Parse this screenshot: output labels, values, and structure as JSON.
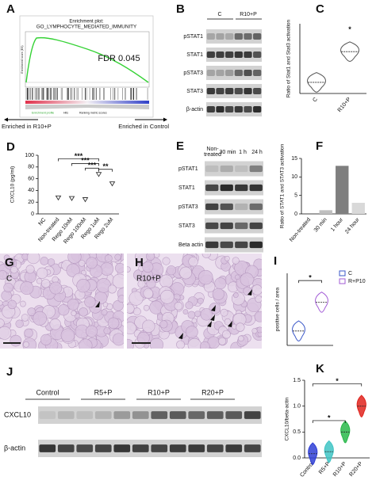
{
  "panels": {
    "A": {
      "letter": "A",
      "title": [
        "Enrichment plot:",
        "GO_LYMPHOCYTE_MEDIATED_IMMUNITY"
      ],
      "fdr": "FDR 0.045",
      "y_label": "Enrichment score (ES)",
      "legend": [
        "Enrichment profile",
        "Hits",
        "Ranking metric scores"
      ],
      "left_label": "Enriched in R10+P",
      "right_label": "Enriched in Control"
    },
    "B": {
      "letter": "B",
      "groups": [
        "C",
        "R10+P"
      ],
      "rows": [
        "pSTAT1",
        "STAT1",
        "pSTAT3",
        "STAT3",
        "β-actin"
      ]
    },
    "E": {
      "letter": "E",
      "columns": [
        "Non-treated",
        "30 min",
        "1 h",
        "24 h"
      ],
      "rows": [
        "pSTAT1",
        "STAT1",
        "pSTAT3",
        "STAT3",
        "Beta actin"
      ]
    },
    "G": {
      "letter": "G",
      "label": "C"
    },
    "H": {
      "letter": "H",
      "label": "R10+P"
    },
    "J": {
      "letter": "J",
      "groups": [
        "Control",
        "R5+P",
        "R10+P",
        "R20+P"
      ],
      "rows": [
        "CXCL10",
        "β-actin"
      ]
    }
  },
  "chart_data": [
    {
      "type": "violin",
      "panel": "C",
      "y_label": "Ratio of Stat1 and Stat3 activation",
      "categories": [
        "C",
        "R10+P"
      ],
      "values": [
        0.8,
        3.0
      ],
      "colors": [
        "#555555",
        "#555555"
      ],
      "ylim": [
        0,
        5
      ],
      "annotations": [
        "*"
      ]
    },
    {
      "type": "dot",
      "panel": "D",
      "y_label": "CXCL10 (pg/ml)",
      "categories": [
        "NC",
        "Non-treated",
        "Rego 10nM",
        "Rego 100nM",
        "Rego 1uM",
        "Rego 2uM"
      ],
      "values": [
        null,
        28,
        27,
        25,
        68,
        52
      ],
      "color": "#333333",
      "ylim": [
        0,
        100
      ],
      "yticks": [
        0,
        20,
        40,
        60,
        80,
        100
      ],
      "annotations": [
        "***",
        "***",
        "***",
        "**"
      ]
    },
    {
      "type": "bar",
      "panel": "F",
      "y_label": "Ratio of STAT1 and STAT3 activation",
      "categories": [
        "Non-treated",
        "30 min",
        "1 hour",
        "24 hour"
      ],
      "values": [
        0,
        1,
        13,
        3
      ],
      "colors": [
        "#d9d9d9",
        "#bfbfbf",
        "#7f7f7f",
        "#d9d9d9"
      ],
      "ylim": [
        0,
        15
      ],
      "yticks": [
        0,
        5,
        10,
        15
      ]
    },
    {
      "type": "violin",
      "panel": "I",
      "y_label": "positive cells / area",
      "legend": [
        "C",
        "R+P10"
      ],
      "values": [
        2,
        6
      ],
      "colors": [
        "#3a57c8",
        "#a25bd6"
      ],
      "ylim": [
        0,
        10
      ],
      "annotations": [
        "*"
      ]
    },
    {
      "type": "violin",
      "panel": "K",
      "y_label": "CXCL10/beta-actin",
      "categories": [
        "Control",
        "R5+P",
        "R10+P",
        "R20+P"
      ],
      "values": [
        0.08,
        0.12,
        0.5,
        1.0
      ],
      "colors": [
        "#2f3fd6",
        "#3fc4c4",
        "#29b84a",
        "#e0241e"
      ],
      "ylim": [
        0,
        1.5
      ],
      "yticks": [
        {
          "value": 0,
          "label": "0.0"
        },
        0.5,
        {
          "value": 1,
          "label": "1.0"
        },
        1.5
      ],
      "annotations": [
        "*",
        "*"
      ]
    }
  ]
}
